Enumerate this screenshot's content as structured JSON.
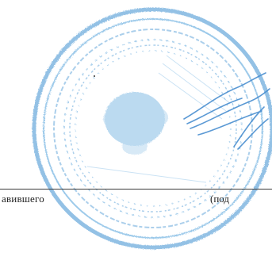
{
  "form": {
    "caption_left": "авившего",
    "caption_right": "(под"
  },
  "stamp": {
    "ink_color": "#5aa0d8",
    "icon": "round-seal-with-eagle-emblem"
  },
  "signature": {
    "ink_color": "#4a8fd0",
    "icon": "handwritten-signature"
  }
}
